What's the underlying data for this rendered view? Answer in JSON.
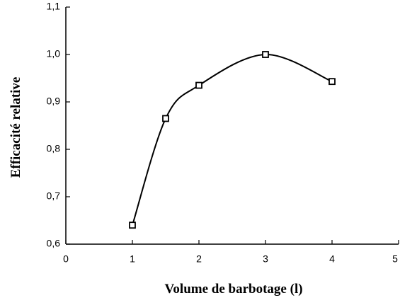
{
  "chart_data": {
    "type": "line",
    "x_label": "Volume de barbotage (l)",
    "y_label": "Efficacité relative",
    "x": [
      1,
      1.5,
      2,
      3,
      4
    ],
    "series": [
      {
        "values": [
          0.64,
          0.865,
          0.935,
          1.0,
          0.943
        ],
        "color": "#000000"
      }
    ],
    "smooth": true,
    "marker": "square",
    "xlim": [
      0,
      5
    ],
    "xticks": [
      0,
      1,
      2,
      3,
      4,
      5
    ],
    "ylim": [
      0.6,
      1.1
    ],
    "yticks": [
      {
        "value": 0.6,
        "label": "0,6"
      },
      {
        "value": 0.7,
        "label": "0,7"
      },
      {
        "value": 0.8,
        "label": "0,8"
      },
      {
        "value": 0.9,
        "label": "0,9"
      },
      {
        "value": 1.0,
        "label": "1,0"
      },
      {
        "value": 1.1,
        "label": "1,1"
      }
    ]
  }
}
